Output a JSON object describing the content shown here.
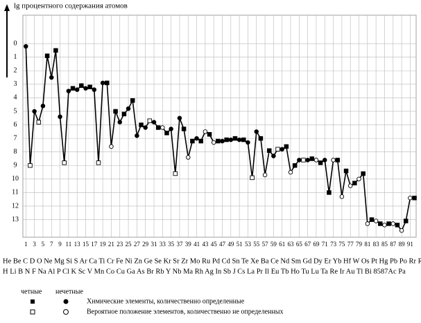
{
  "chart_data": {
    "type": "line",
    "y_label": "lg процентного содержания атомов",
    "x": [
      1,
      2,
      3,
      4,
      5,
      6,
      7,
      8,
      9,
      10,
      11,
      12,
      13,
      14,
      15,
      16,
      17,
      18,
      19,
      20,
      21,
      22,
      23,
      24,
      25,
      26,
      27,
      28,
      29,
      30,
      31,
      32,
      33,
      34,
      35,
      36,
      37,
      38,
      39,
      40,
      41,
      42,
      43,
      44,
      45,
      46,
      47,
      48,
      49,
      50,
      51,
      52,
      53,
      54,
      55,
      56,
      57,
      58,
      59,
      60,
      61,
      62,
      63,
      64,
      65,
      66,
      67,
      68,
      69,
      70,
      71,
      72,
      73,
      74,
      75,
      76,
      77,
      78,
      79,
      80,
      81,
      82,
      83,
      84,
      85,
      86,
      87,
      88,
      89,
      90,
      91,
      92
    ],
    "values": [
      0.2,
      9.0,
      5.0,
      5.8,
      4.6,
      0.9,
      2.5,
      0.5,
      5.4,
      8.8,
      3.5,
      3.3,
      3.4,
      3.1,
      3.3,
      3.2,
      3.4,
      8.8,
      2.9,
      2.9,
      7.6,
      5.0,
      5.8,
      5.2,
      4.8,
      4.2,
      6.8,
      6.0,
      6.2,
      5.7,
      5.8,
      6.2,
      6.2,
      6.6,
      6.3,
      9.6,
      5.5,
      6.3,
      8.4,
      7.2,
      7.0,
      7.2,
      6.5,
      6.7,
      7.3,
      7.2,
      7.2,
      7.1,
      7.1,
      7.0,
      7.1,
      7.1,
      7.3,
      9.9,
      6.5,
      7.0,
      9.7,
      7.9,
      8.3,
      7.8,
      7.8,
      7.6,
      9.5,
      9.0,
      8.6,
      8.6,
      8.6,
      8.5,
      8.6,
      8.8,
      8.6,
      11.0,
      8.6,
      8.6,
      11.3,
      9.4,
      10.5,
      10.3,
      10.0,
      9.6,
      13.3,
      13.0,
      13.1,
      13.3,
      13.4,
      13.3,
      13.3,
      13.4,
      13.8,
      13.1,
      11.4,
      11.4
    ],
    "filled": [
      true,
      false,
      true,
      false,
      true,
      true,
      true,
      true,
      true,
      false,
      true,
      true,
      true,
      true,
      true,
      true,
      true,
      false,
      true,
      true,
      false,
      true,
      true,
      true,
      true,
      true,
      true,
      true,
      true,
      false,
      true,
      true,
      false,
      true,
      true,
      false,
      true,
      true,
      false,
      true,
      true,
      true,
      false,
      true,
      false,
      true,
      true,
      true,
      true,
      true,
      true,
      true,
      true,
      false,
      true,
      true,
      false,
      true,
      true,
      false,
      true,
      true,
      false,
      true,
      true,
      false,
      true,
      true,
      false,
      true,
      true,
      true,
      false,
      true,
      false,
      true,
      false,
      true,
      false,
      true,
      false,
      true,
      false,
      true,
      false,
      true,
      false,
      true,
      false,
      true,
      false,
      true
    ],
    "color": "#000000",
    "xlim": [
      0.3,
      92.4
    ],
    "xticks": [
      1,
      3,
      5,
      7,
      9,
      11,
      13,
      15,
      17,
      19,
      21,
      23,
      25,
      27,
      29,
      31,
      33,
      35,
      37,
      39,
      41,
      43,
      45,
      47,
      49,
      51,
      53,
      55,
      57,
      59,
      61,
      63,
      65,
      67,
      69,
      71,
      73,
      75,
      77,
      79,
      81,
      83,
      85,
      87,
      89,
      91
    ],
    "ylim": [
      -2.1,
      14.3
    ],
    "y_inverted": true,
    "yticks": [
      0,
      1,
      2,
      3,
      4,
      5,
      6,
      7,
      8,
      9,
      10,
      11,
      12,
      13
    ],
    "grid": true,
    "element_rows": [
      "He Be C D O Ne Mg Si S Ar Ca Ti Cr Fe Ni Zn Ge Se Kr Sr Zr Mo Ru Pd Cd Sn Te Xe Ba Ce Nd Sm Gd Dy Er Yb Hf W Os Pt Hg Pb Po Rr Ra Th U",
      "H Li B N F Na Al P Cl K Sc V Mn Co Cu Ga As Br Rb Y Nb Ma Rh Ag In Sb J Cs La Pr Il Eu Tb Ho Tu Lu Ta Re Ir Au Tl Bi 8587Ac Pa"
    ],
    "legend": {
      "even": "четные",
      "odd": "нечетные",
      "filled": "Химические элементы, количественно определенные",
      "open": "Вероятное положение элементов, количественно не определенных"
    }
  }
}
